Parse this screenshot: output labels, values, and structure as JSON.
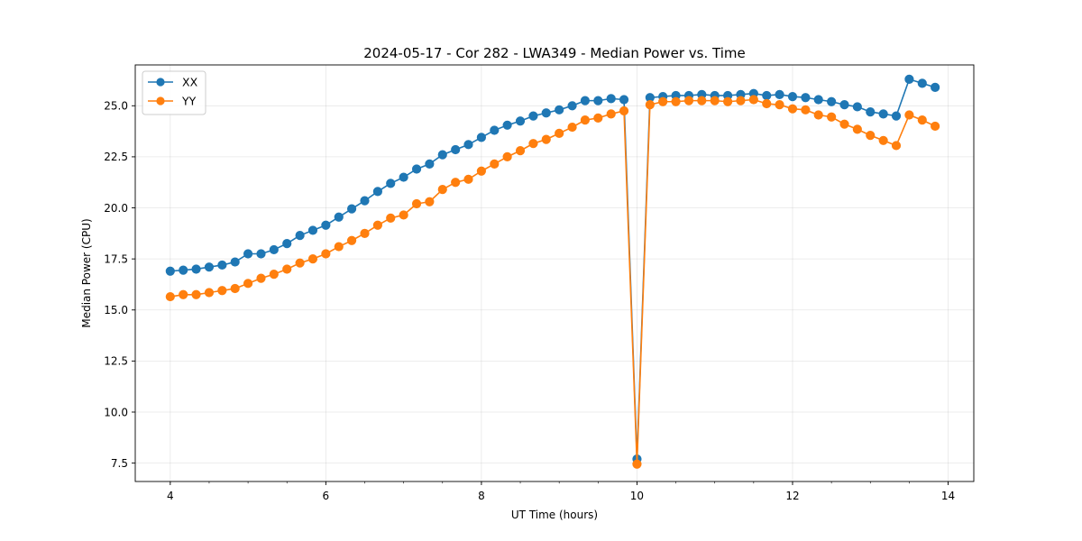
{
  "chart_data": {
    "type": "line",
    "title": "2024-05-17 - Cor 282 - LWA349 - Median Power vs. Time",
    "xlabel": "UT Time (hours)",
    "ylabel": "Median Power (CPU)",
    "xlim": [
      3.55,
      14.33
    ],
    "ylim": [
      6.6,
      27.0
    ],
    "xticks": [
      4,
      6,
      8,
      10,
      12,
      14
    ],
    "xtick_labels": [
      "4",
      "6",
      "8",
      "10",
      "12",
      "14"
    ],
    "xminor_step": 0.5,
    "yticks": [
      7.5,
      10.0,
      12.5,
      15.0,
      17.5,
      20.0,
      22.5,
      25.0
    ],
    "ytick_labels": [
      "7.5",
      "10.0",
      "12.5",
      "15.0",
      "17.5",
      "20.0",
      "22.5",
      "25.0"
    ],
    "grid": true,
    "legend_position": "top-left",
    "series": [
      {
        "name": "XX",
        "color": "#1f77b4",
        "segments": [
          {
            "x": [
              4.0,
              4.167,
              4.333,
              4.5,
              4.667,
              4.833,
              5.0,
              5.167,
              5.333,
              5.5,
              5.667,
              5.833,
              6.0,
              6.167,
              6.333,
              6.5,
              6.667,
              6.833,
              7.0,
              7.167,
              7.333,
              7.5,
              7.667,
              7.833,
              8.0,
              8.167,
              8.333,
              8.5,
              8.667,
              8.833,
              9.0,
              9.167,
              9.333,
              9.5,
              9.667,
              9.833,
              10.0,
              10.167,
              10.333,
              10.5,
              10.667,
              10.833,
              11.0,
              11.167,
              11.333,
              11.5,
              11.667,
              11.833,
              12.0,
              12.167,
              12.333,
              12.5,
              12.667,
              12.833,
              13.0,
              13.167,
              13.333
            ],
            "y": [
              16.9,
              16.95,
              17.0,
              17.1,
              17.2,
              17.35,
              17.75,
              17.75,
              17.95,
              18.25,
              18.65,
              18.9,
              19.15,
              19.55,
              19.95,
              20.35,
              20.8,
              21.2,
              21.5,
              21.9,
              22.15,
              22.6,
              22.85,
              23.1,
              23.45,
              23.8,
              24.05,
              24.25,
              24.5,
              24.65,
              24.8,
              25.0,
              25.25,
              25.25,
              25.35,
              25.3,
              7.7,
              25.4,
              25.45,
              25.5,
              25.5,
              25.55,
              25.5,
              25.5,
              25.55,
              25.6,
              25.5,
              25.55,
              25.45,
              25.4,
              25.3,
              25.2,
              25.05,
              24.95,
              24.7,
              24.6,
              24.5
            ]
          },
          {
            "x": [
              13.333,
              13.5,
              13.667,
              13.833
            ],
            "y": [
              24.5,
              26.3,
              26.1,
              25.9
            ]
          }
        ]
      },
      {
        "name": "YY",
        "color": "#ff7f0e",
        "segments": [
          {
            "x": [
              4.0,
              4.167,
              4.333,
              4.5,
              4.667,
              4.833,
              5.0,
              5.167,
              5.333,
              5.5,
              5.667,
              5.833,
              6.0,
              6.167,
              6.333,
              6.5,
              6.667,
              6.833,
              7.0,
              7.167,
              7.333,
              7.5,
              7.667,
              7.833,
              8.0,
              8.167,
              8.333,
              8.5,
              8.667,
              8.833,
              9.0,
              9.167,
              9.333,
              9.5,
              9.667,
              9.833,
              10.0,
              10.167,
              10.333,
              10.5,
              10.667,
              10.833,
              11.0,
              11.167,
              11.333,
              11.5,
              11.667,
              11.833,
              12.0,
              12.167,
              12.333,
              12.5,
              12.667,
              12.833,
              13.0,
              13.167,
              13.333,
              13.5,
              13.667,
              13.833
            ],
            "y": [
              15.65,
              15.75,
              15.75,
              15.85,
              15.95,
              16.05,
              16.3,
              16.55,
              16.75,
              17.0,
              17.3,
              17.5,
              17.75,
              18.1,
              18.4,
              18.75,
              19.15,
              19.5,
              19.65,
              20.2,
              20.3,
              20.9,
              21.25,
              21.4,
              21.8,
              22.15,
              22.5,
              22.8,
              23.15,
              23.35,
              23.65,
              23.95,
              24.3,
              24.4,
              24.6,
              24.75,
              7.45,
              25.05,
              25.2,
              25.2,
              25.25,
              25.25,
              25.25,
              25.2,
              25.25,
              25.3,
              25.1,
              25.05,
              24.85,
              24.8,
              24.55,
              24.45,
              24.1,
              23.85,
              23.55,
              23.3,
              23.05,
              24.55,
              24.3,
              24.0
            ]
          }
        ]
      }
    ]
  }
}
